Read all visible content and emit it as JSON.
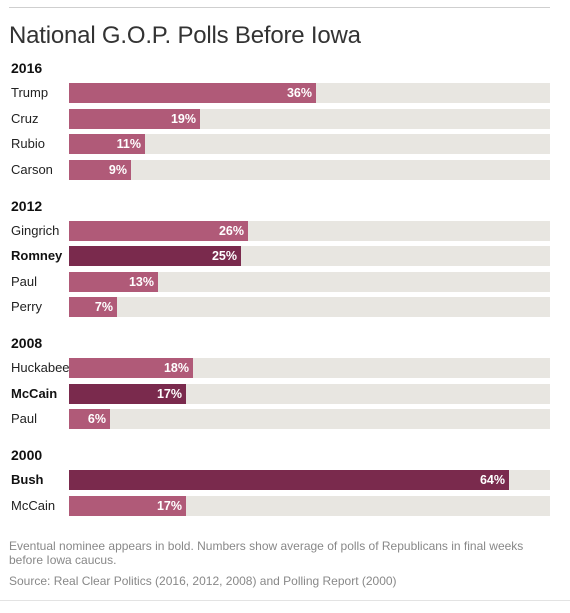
{
  "title": "National G.O.P. Polls Before Iowa",
  "footnote": "Eventual nominee appears in bold. Numbers show average of polls of Republicans in final weeks before Iowa caucus.",
  "source": "Source: Real Clear Politics (2016, 2012, 2008) and Polling Report (2000)",
  "colors": {
    "bar": "#b05a78",
    "nominee_bar": "#7a2a4d",
    "track": "#e8e6e1"
  },
  "chart_data": {
    "type": "bar",
    "orientation": "horizontal",
    "xlim": [
      0,
      70
    ],
    "groups": [
      {
        "year": "2016",
        "rows": [
          {
            "name": "Trump",
            "value": 36,
            "label": "36%",
            "nominee": false
          },
          {
            "name": "Cruz",
            "value": 19,
            "label": "19%",
            "nominee": false
          },
          {
            "name": "Rubio",
            "value": 11,
            "label": "11%",
            "nominee": false
          },
          {
            "name": "Carson",
            "value": 9,
            "label": "9%",
            "nominee": false
          }
        ]
      },
      {
        "year": "2012",
        "rows": [
          {
            "name": "Gingrich",
            "value": 26,
            "label": "26%",
            "nominee": false
          },
          {
            "name": "Romney",
            "value": 25,
            "label": "25%",
            "nominee": true
          },
          {
            "name": "Paul",
            "value": 13,
            "label": "13%",
            "nominee": false
          },
          {
            "name": "Perry",
            "value": 7,
            "label": "7%",
            "nominee": false
          }
        ]
      },
      {
        "year": "2008",
        "rows": [
          {
            "name": "Huckabee",
            "value": 18,
            "label": "18%",
            "nominee": false
          },
          {
            "name": "McCain",
            "value": 17,
            "label": "17%",
            "nominee": true
          },
          {
            "name": "Paul",
            "value": 6,
            "label": "6%",
            "nominee": false
          }
        ]
      },
      {
        "year": "2000",
        "rows": [
          {
            "name": "Bush",
            "value": 64,
            "label": "64%",
            "nominee": true
          },
          {
            "name": "McCain",
            "value": 17,
            "label": "17%",
            "nominee": false
          }
        ]
      }
    ]
  }
}
